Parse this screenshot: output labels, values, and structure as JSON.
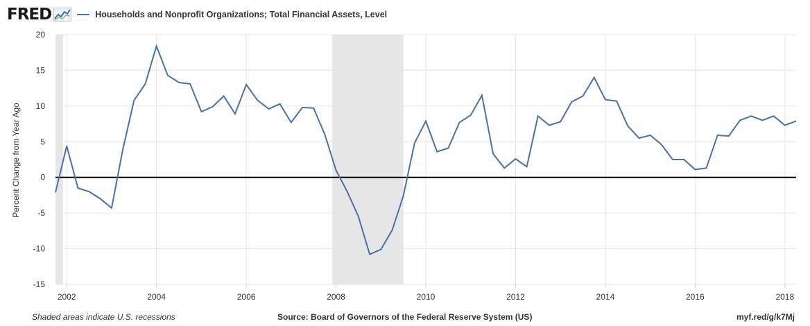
{
  "header": {
    "logo": "FRED",
    "logo_icon": "line-chart-icon",
    "series_title": "Households and Nonprofit Organizations; Total Financial Assets, Level"
  },
  "footer": {
    "note": "Shaded areas indicate U.S. recessions",
    "source": "Source: Board of Governors of the Federal Reserve System (US)",
    "link": "myf.red/g/k7Mj"
  },
  "colors": {
    "series": "#4572a7",
    "recession": "#e6e6e6",
    "grid": "#e6e6e6",
    "zero_line": "#000000",
    "text": "#333333"
  },
  "chart_data": {
    "type": "line",
    "title": "",
    "xlabel": "",
    "ylabel": "Percent Change from Year Ago",
    "xlim": [
      "2001-10",
      "2018-04"
    ],
    "ylim": [
      -15,
      20
    ],
    "yticks": [
      -15,
      -10,
      -5,
      0,
      5,
      10,
      15,
      20
    ],
    "xticks": [
      "2002",
      "2004",
      "2006",
      "2008",
      "2010",
      "2012",
      "2014",
      "2016",
      "2018"
    ],
    "grid": true,
    "recessions": [
      {
        "start": "2001-10",
        "end": "2001-11"
      },
      {
        "start": "2007-12",
        "end": "2009-06"
      }
    ],
    "series": [
      {
        "name": "Households and Nonprofit Organizations; Total Financial Assets, Level",
        "dates": [
          "2001-10",
          "2002-01",
          "2002-04",
          "2002-07",
          "2002-10",
          "2003-01",
          "2003-04",
          "2003-07",
          "2003-10",
          "2004-01",
          "2004-04",
          "2004-07",
          "2004-10",
          "2005-01",
          "2005-04",
          "2005-07",
          "2005-10",
          "2006-01",
          "2006-04",
          "2006-07",
          "2006-10",
          "2007-01",
          "2007-04",
          "2007-07",
          "2007-10",
          "2008-01",
          "2008-04",
          "2008-07",
          "2008-10",
          "2009-01",
          "2009-04",
          "2009-07",
          "2009-10",
          "2010-01",
          "2010-04",
          "2010-07",
          "2010-10",
          "2011-01",
          "2011-04",
          "2011-07",
          "2011-10",
          "2012-01",
          "2012-04",
          "2012-07",
          "2012-10",
          "2013-01",
          "2013-04",
          "2013-07",
          "2013-10",
          "2014-01",
          "2014-04",
          "2014-07",
          "2014-10",
          "2015-01",
          "2015-04",
          "2015-07",
          "2015-10",
          "2016-01",
          "2016-04",
          "2016-07",
          "2016-10",
          "2017-01",
          "2017-04",
          "2017-07",
          "2017-10",
          "2018-01",
          "2018-04"
        ],
        "values": [
          -2.1,
          4.4,
          -1.5,
          -2.0,
          -3.0,
          -4.3,
          3.9,
          10.8,
          13.1,
          18.4,
          14.3,
          13.3,
          13.1,
          9.2,
          9.9,
          11.4,
          8.9,
          13.0,
          10.8,
          9.6,
          10.3,
          7.7,
          9.8,
          9.7,
          6.0,
          1.0,
          -2.0,
          -5.5,
          -10.8,
          -10.1,
          -7.4,
          -2.6,
          4.8,
          7.9,
          3.6,
          4.1,
          7.7,
          8.7,
          11.5,
          3.3,
          1.3,
          2.6,
          1.5,
          8.6,
          7.3,
          7.8,
          10.6,
          11.4,
          14.0,
          10.9,
          10.7,
          7.2,
          5.5,
          5.9,
          4.6,
          2.5,
          2.5,
          1.1,
          1.3,
          5.9,
          5.8,
          8.0,
          8.6,
          8.0,
          8.6,
          7.3,
          7.9
        ]
      }
    ]
  }
}
